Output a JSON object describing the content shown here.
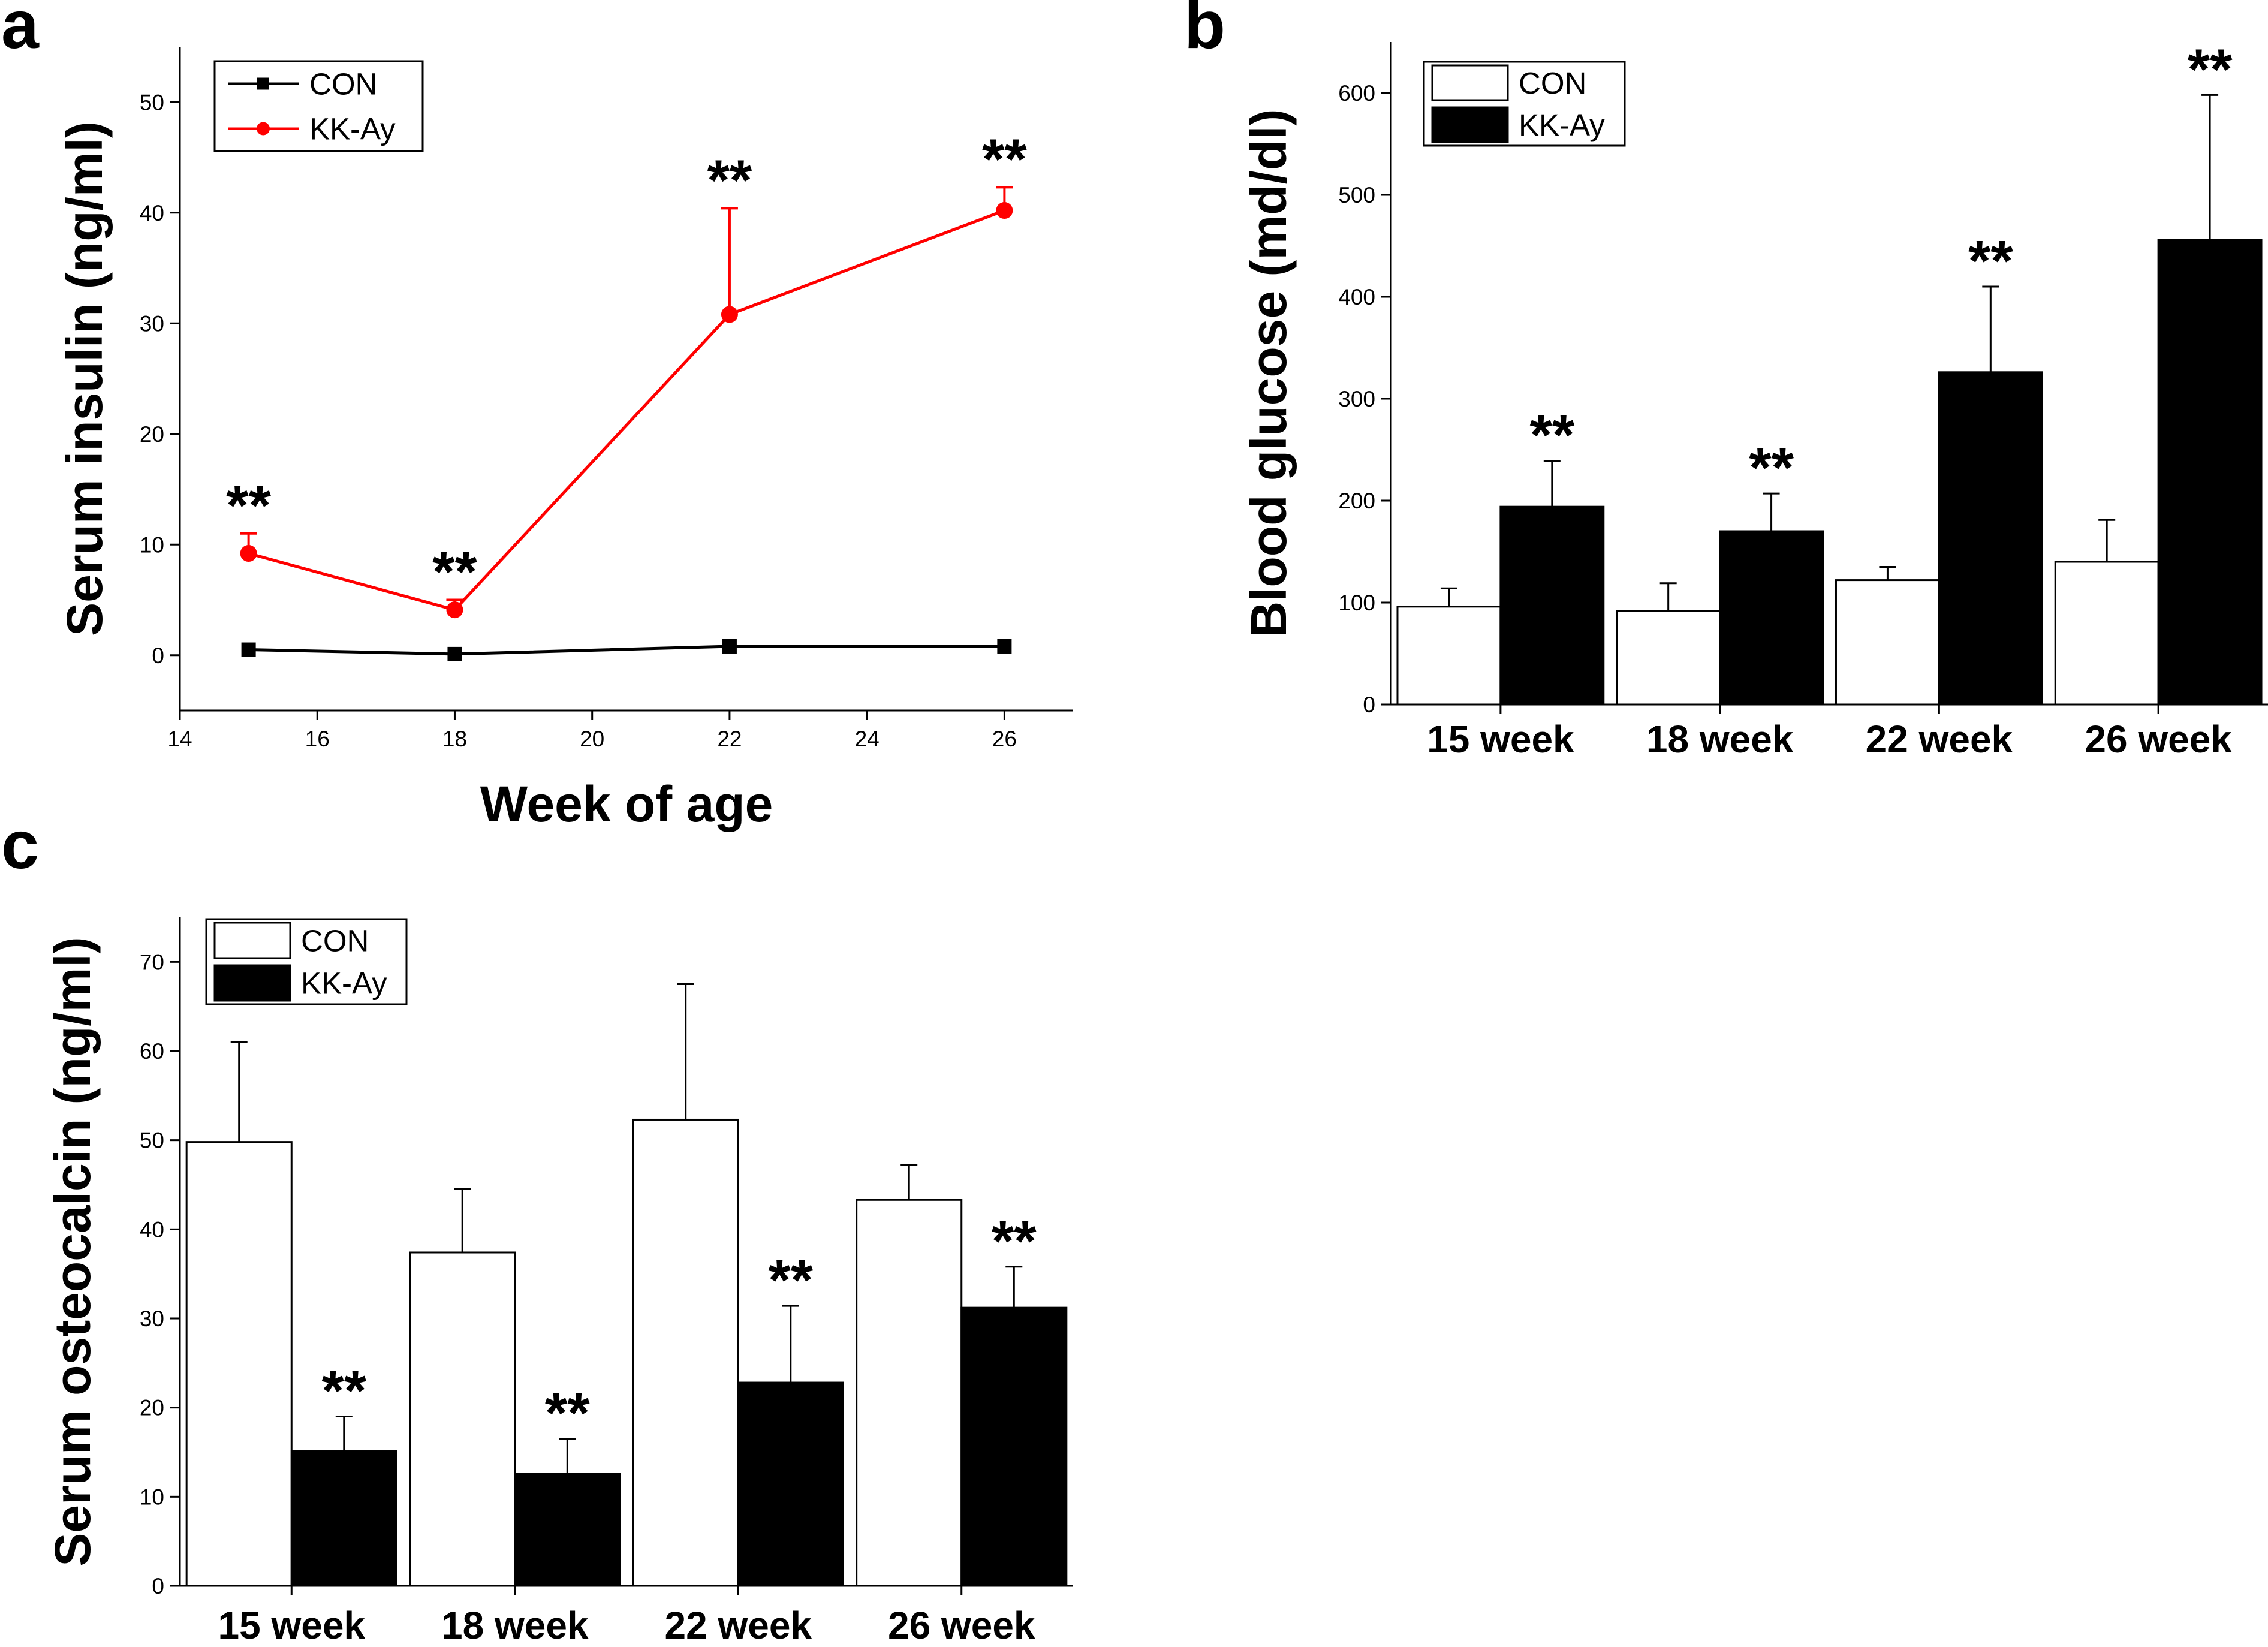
{
  "panels": {
    "a": {
      "letter": "a",
      "chart_data": {
        "type": "line",
        "xlabel": "Week of age",
        "ylabel": "Serum insulin (ng/ml)",
        "xlim": [
          14,
          27
        ],
        "ylim": [
          -5,
          55
        ],
        "xticks": [
          14,
          16,
          18,
          20,
          22,
          24,
          26
        ],
        "yticks": [
          0,
          10,
          20,
          30,
          40,
          50
        ],
        "grid": false,
        "legend_position": "top-left",
        "series": [
          {
            "name": "CON",
            "color": "#000000",
            "marker": "square",
            "x": [
              15,
              18,
              22,
              26
            ],
            "y": [
              0.5,
              0.1,
              0.8,
              0.8
            ],
            "err": [
              0,
              0,
              0,
              0
            ],
            "sig": [
              "",
              "",
              "",
              ""
            ]
          },
          {
            "name": "KK-Ay",
            "color": "#ff0000",
            "marker": "circle",
            "x": [
              15,
              18,
              22,
              26
            ],
            "y": [
              9.2,
              4.1,
              30.8,
              40.2
            ],
            "err": [
              1.8,
              0.9,
              9.6,
              2.1
            ],
            "sig": [
              "**",
              "**",
              "**",
              "**"
            ]
          }
        ]
      }
    },
    "b": {
      "letter": "b",
      "chart_data": {
        "type": "bar",
        "ylabel": "Blood glucose (md/dl)",
        "categories": [
          "15 week",
          "18 week",
          "22 week",
          "26 week"
        ],
        "ylim": [
          0,
          650
        ],
        "yticks": [
          0,
          100,
          200,
          300,
          400,
          500,
          600
        ],
        "grid": false,
        "legend_position": "top-left",
        "series": [
          {
            "name": "CON",
            "fill": "#ffffff",
            "values": [
              96,
              92,
              122,
              140
            ],
            "err": [
              18,
              27,
              13,
              41
            ],
            "sig": [
              "",
              "",
              "",
              ""
            ]
          },
          {
            "name": "KK-Ay",
            "fill": "#000000",
            "values": [
              194,
              170,
              326,
              456
            ],
            "err": [
              45,
              37,
              84,
              142
            ],
            "sig": [
              "**",
              "**",
              "**",
              "**"
            ]
          }
        ]
      }
    },
    "c": {
      "letter": "c",
      "chart_data": {
        "type": "bar",
        "ylabel": "Serum osteocalcin (ng/ml)",
        "categories": [
          "15 week",
          "18 week",
          "22 week",
          "26 week"
        ],
        "ylim": [
          0,
          75
        ],
        "yticks": [
          0,
          10,
          20,
          30,
          40,
          50,
          60,
          70
        ],
        "grid": false,
        "legend_position": "top-left",
        "series": [
          {
            "name": "CON",
            "fill": "#ffffff",
            "values": [
              49.8,
              37.4,
              52.3,
              43.3
            ],
            "err": [
              11.2,
              7.1,
              15.2,
              3.9
            ],
            "sig": [
              "",
              "",
              "",
              ""
            ]
          },
          {
            "name": "KK-Ay",
            "fill": "#000000",
            "values": [
              15.1,
              12.6,
              22.8,
              31.2
            ],
            "err": [
              3.9,
              3.9,
              8.6,
              4.6
            ],
            "sig": [
              "**",
              "**",
              "**",
              "**"
            ]
          }
        ]
      }
    }
  }
}
